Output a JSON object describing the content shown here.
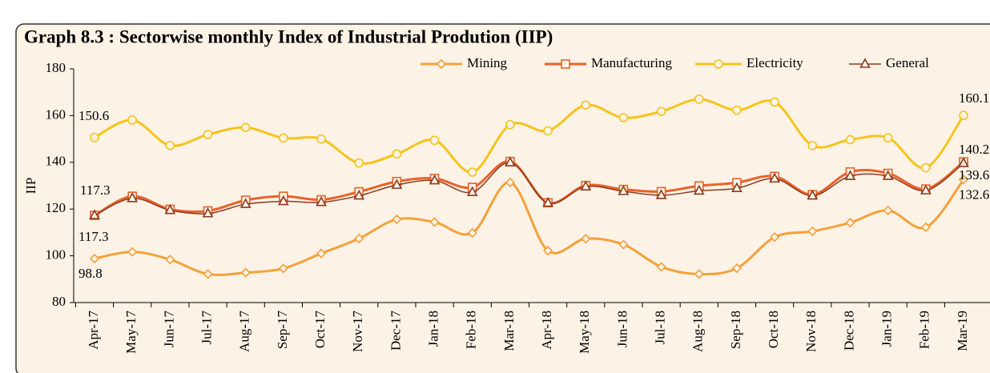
{
  "chart_data": {
    "type": "line",
    "title": "Graph 8.3 : Sectorwise monthly Index of Industrial Prodution (IIP)",
    "y_label": "IIP",
    "categories": [
      "Apr-17",
      "May-17",
      "Jun-17",
      "Jul-17",
      "Aug-17",
      "Sep-17",
      "Oct-17",
      "Nov-17",
      "Dec-17",
      "Jan-18",
      "Feb-18",
      "Mar-18",
      "Apr-18",
      "May-18",
      "Jun-18",
      "Jul-18",
      "Aug-18",
      "Sep-18",
      "Oct-18",
      "Nov-18",
      "Dec-18",
      "Jan-19",
      "Feb-19",
      "Mar-19"
    ],
    "ylim": [
      80,
      180
    ],
    "yticks": [
      80,
      100,
      120,
      140,
      160,
      180
    ],
    "legend": "top",
    "series": [
      {
        "name": "Mining",
        "color": "#f4a13a",
        "marker": "diamond",
        "values": [
          98.8,
          101.7,
          98.4,
          92.2,
          92.8,
          94.6,
          101.0,
          107.4,
          115.6,
          114.4,
          109.8,
          131.4,
          102.2,
          107.3,
          104.8,
          95.3,
          92.2,
          94.7,
          108.0,
          110.5,
          114.2,
          119.4,
          112.2,
          132.6
        ]
      },
      {
        "name": "Manufacturing",
        "color": "#e8622a",
        "marker": "square",
        "values": [
          117.3,
          125.5,
          119.9,
          119.2,
          123.8,
          125.5,
          124.0,
          127.4,
          131.8,
          133.1,
          129.3,
          140.4,
          122.7,
          130.1,
          128.4,
          127.5,
          129.9,
          131.3,
          134.0,
          126.2,
          135.9,
          135.3,
          128.6,
          140.2
        ]
      },
      {
        "name": "Electricity",
        "color": "#f5c41a",
        "marker": "circle",
        "values": [
          150.6,
          158.1,
          147.2,
          151.9,
          154.9,
          150.4,
          150.0,
          139.7,
          143.6,
          149.4,
          135.8,
          156.1,
          153.5,
          164.5,
          159.1,
          161.8,
          167.0,
          162.3,
          165.8,
          147.2,
          149.7,
          150.5,
          137.7,
          160.1
        ]
      },
      {
        "name": "General",
        "color": "#8b3a1e",
        "marker": "triangle",
        "values": [
          117.3,
          124.6,
          119.5,
          118.1,
          122.1,
          123.3,
          122.9,
          125.7,
          130.3,
          132.2,
          127.2,
          139.9,
          122.6,
          129.6,
          127.6,
          125.9,
          127.8,
          128.9,
          133.0,
          125.7,
          134.1,
          134.1,
          127.9,
          139.6
        ]
      }
    ]
  }
}
